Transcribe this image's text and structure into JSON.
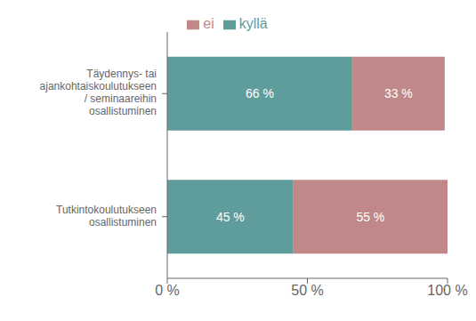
{
  "chart_data": {
    "type": "bar",
    "orientation": "horizontal",
    "stacked": true,
    "data_labels": true,
    "grid": false,
    "legend": "top",
    "categories": [
      "Täydennys- tai\najankohtaiskoulutukseen\n/ seminaareihin\nosallistuminen",
      "Tutkintokoulutukseen\nosallistuminen"
    ],
    "series": [
      {
        "name": "kyllä",
        "color": "#5f9c9c",
        "values": [
          66,
          45
        ],
        "value_labels": [
          "66 %",
          "45 %"
        ]
      },
      {
        "name": "ei",
        "color": "#c08888",
        "values": [
          33,
          55
        ],
        "value_labels": [
          "33 %",
          "55 %"
        ]
      }
    ],
    "xlim": [
      0,
      100
    ],
    "xticks": [
      {
        "value": 0,
        "label": "0 %"
      },
      {
        "value": 50,
        "label": "50 %"
      },
      {
        "value": 100,
        "label": "100 %"
      }
    ]
  }
}
